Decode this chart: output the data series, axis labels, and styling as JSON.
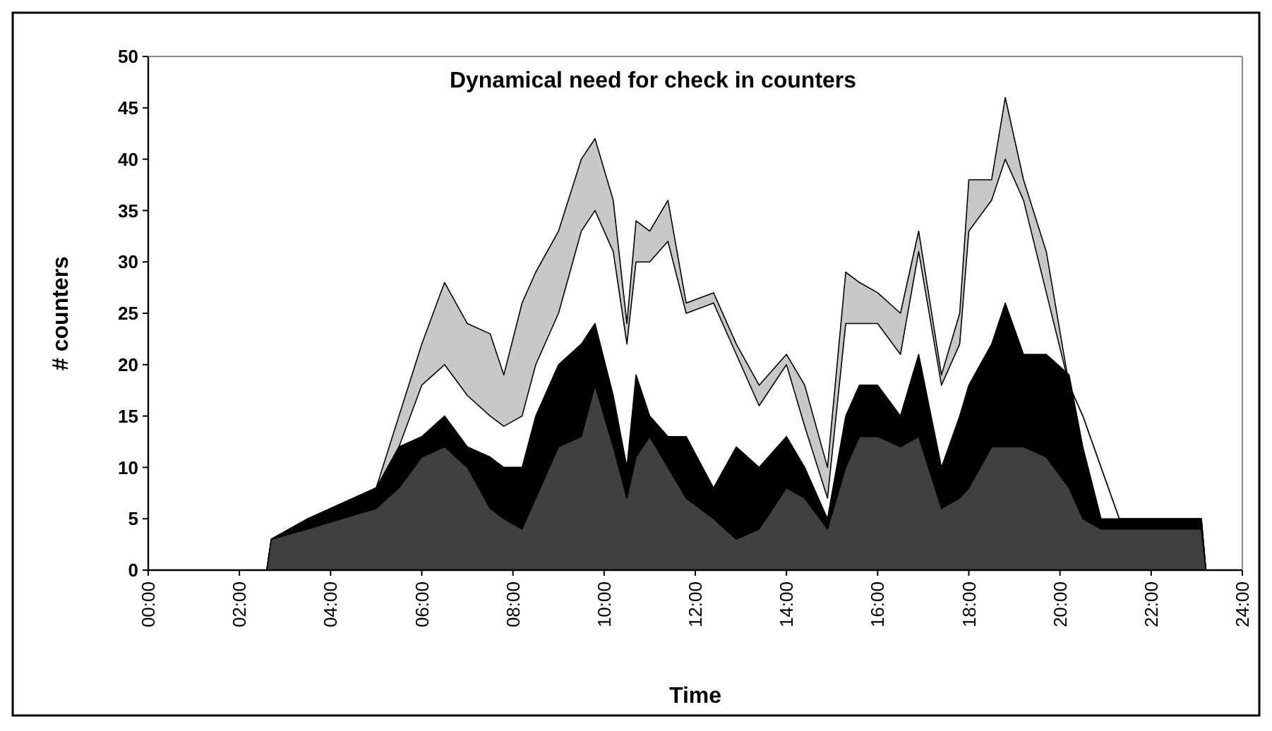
{
  "chart_data": {
    "type": "area",
    "title": "Dynamical need for check in counters",
    "xlabel": "Time",
    "ylabel": "# counters",
    "x": [
      0,
      2.6,
      2.7,
      3.5,
      5,
      5.5,
      6,
      6.5,
      7,
      7.5,
      7.8,
      8.2,
      8.5,
      9,
      9.5,
      9.8,
      10.2,
      10.5,
      10.7,
      11,
      11.4,
      11.8,
      12.4,
      12.9,
      13.4,
      14,
      14.4,
      14.9,
      15.3,
      15.6,
      16,
      16.5,
      16.9,
      17.4,
      17.8,
      18,
      18.5,
      18.8,
      19.2,
      19.7,
      20.2,
      20.5,
      20.9,
      21.3,
      23.1,
      23.2
    ],
    "series": [
      {
        "color": "#c8c8c8",
        "values": [
          0,
          0,
          3,
          5,
          8,
          15,
          22,
          28,
          24,
          23,
          19,
          26,
          29,
          33,
          40,
          42,
          36,
          24,
          34,
          33,
          36,
          26,
          27,
          22,
          18,
          21,
          18,
          10,
          29,
          28,
          27,
          25,
          33,
          19,
          25,
          38,
          38,
          46,
          38,
          31,
          18,
          15,
          10,
          5,
          5,
          0
        ]
      },
      {
        "color": "#ffffff",
        "values": [
          0,
          0,
          3,
          5,
          8,
          12,
          18,
          20,
          17,
          15,
          14,
          15,
          20,
          25,
          33,
          35,
          31,
          22,
          30,
          30,
          32,
          25,
          26,
          21,
          16,
          20,
          14,
          7,
          24,
          24,
          24,
          21,
          31,
          18,
          22,
          33,
          36,
          40,
          36,
          27,
          18,
          15,
          10,
          5,
          5,
          0
        ]
      },
      {
        "color": "#000000",
        "values": [
          0,
          0,
          3,
          5,
          8,
          12,
          13,
          15,
          12,
          11,
          10,
          10,
          15,
          20,
          22,
          24,
          17,
          10,
          19,
          15,
          13,
          13,
          8,
          12,
          10,
          13,
          10,
          5,
          15,
          18,
          18,
          15,
          21,
          10,
          15,
          18,
          22,
          26,
          21,
          21,
          19,
          12,
          5,
          5,
          5,
          0
        ]
      },
      {
        "color": "#404040",
        "values": [
          0,
          0,
          3,
          4,
          6,
          8,
          11,
          12,
          10,
          6,
          5,
          4,
          7,
          12,
          13,
          18,
          12,
          7,
          11,
          13,
          10,
          7,
          5,
          3,
          4,
          8,
          7,
          4,
          10,
          13,
          13,
          12,
          13,
          6,
          7,
          8,
          12,
          12,
          12,
          11,
          8,
          5,
          4,
          4,
          4,
          0
        ]
      }
    ],
    "xlim": [
      0,
      24
    ],
    "xticks": [
      {
        "value": 0,
        "label": "00:00"
      },
      {
        "value": 2,
        "label": "02:00"
      },
      {
        "value": 4,
        "label": "04:00"
      },
      {
        "value": 6,
        "label": "06:00"
      },
      {
        "value": 8,
        "label": "08:00"
      },
      {
        "value": 10,
        "label": "10:00"
      },
      {
        "value": 12,
        "label": "12:00"
      },
      {
        "value": 14,
        "label": "14:00"
      },
      {
        "value": 16,
        "label": "16:00"
      },
      {
        "value": 18,
        "label": "18:00"
      },
      {
        "value": 20,
        "label": "20:00"
      },
      {
        "value": 22,
        "label": "22:00"
      },
      {
        "value": 24,
        "label": "24:00"
      }
    ],
    "ylim": [
      0,
      50
    ],
    "yticks": [
      0,
      5,
      10,
      15,
      20,
      25,
      30,
      35,
      40,
      45,
      50
    ],
    "grid": false
  }
}
